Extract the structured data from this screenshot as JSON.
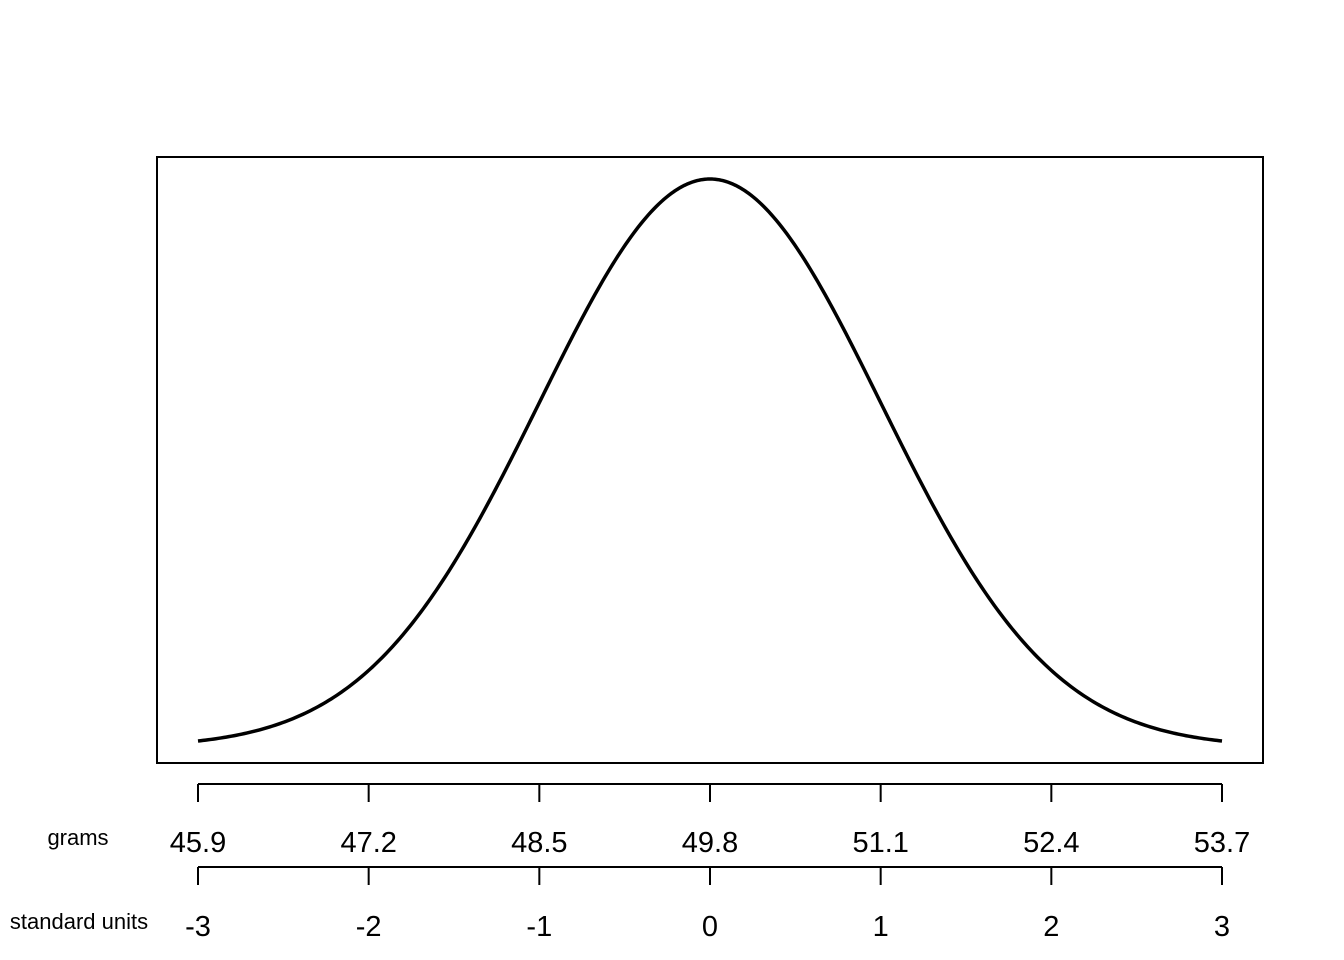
{
  "chart_data": {
    "type": "line",
    "title": "",
    "curve": "normal-density",
    "mean": 49.8,
    "sd": 1.3,
    "xlim": [
      -3,
      3
    ],
    "axes": [
      {
        "label": "grams",
        "ticks": [
          "45.9",
          "47.2",
          "48.5",
          "49.8",
          "51.1",
          "52.4",
          "53.7"
        ]
      },
      {
        "label": "standard units",
        "ticks": [
          "-3",
          "-2",
          "-1",
          "0",
          "1",
          "2",
          "3"
        ]
      }
    ],
    "grid": false,
    "legend": "none"
  }
}
